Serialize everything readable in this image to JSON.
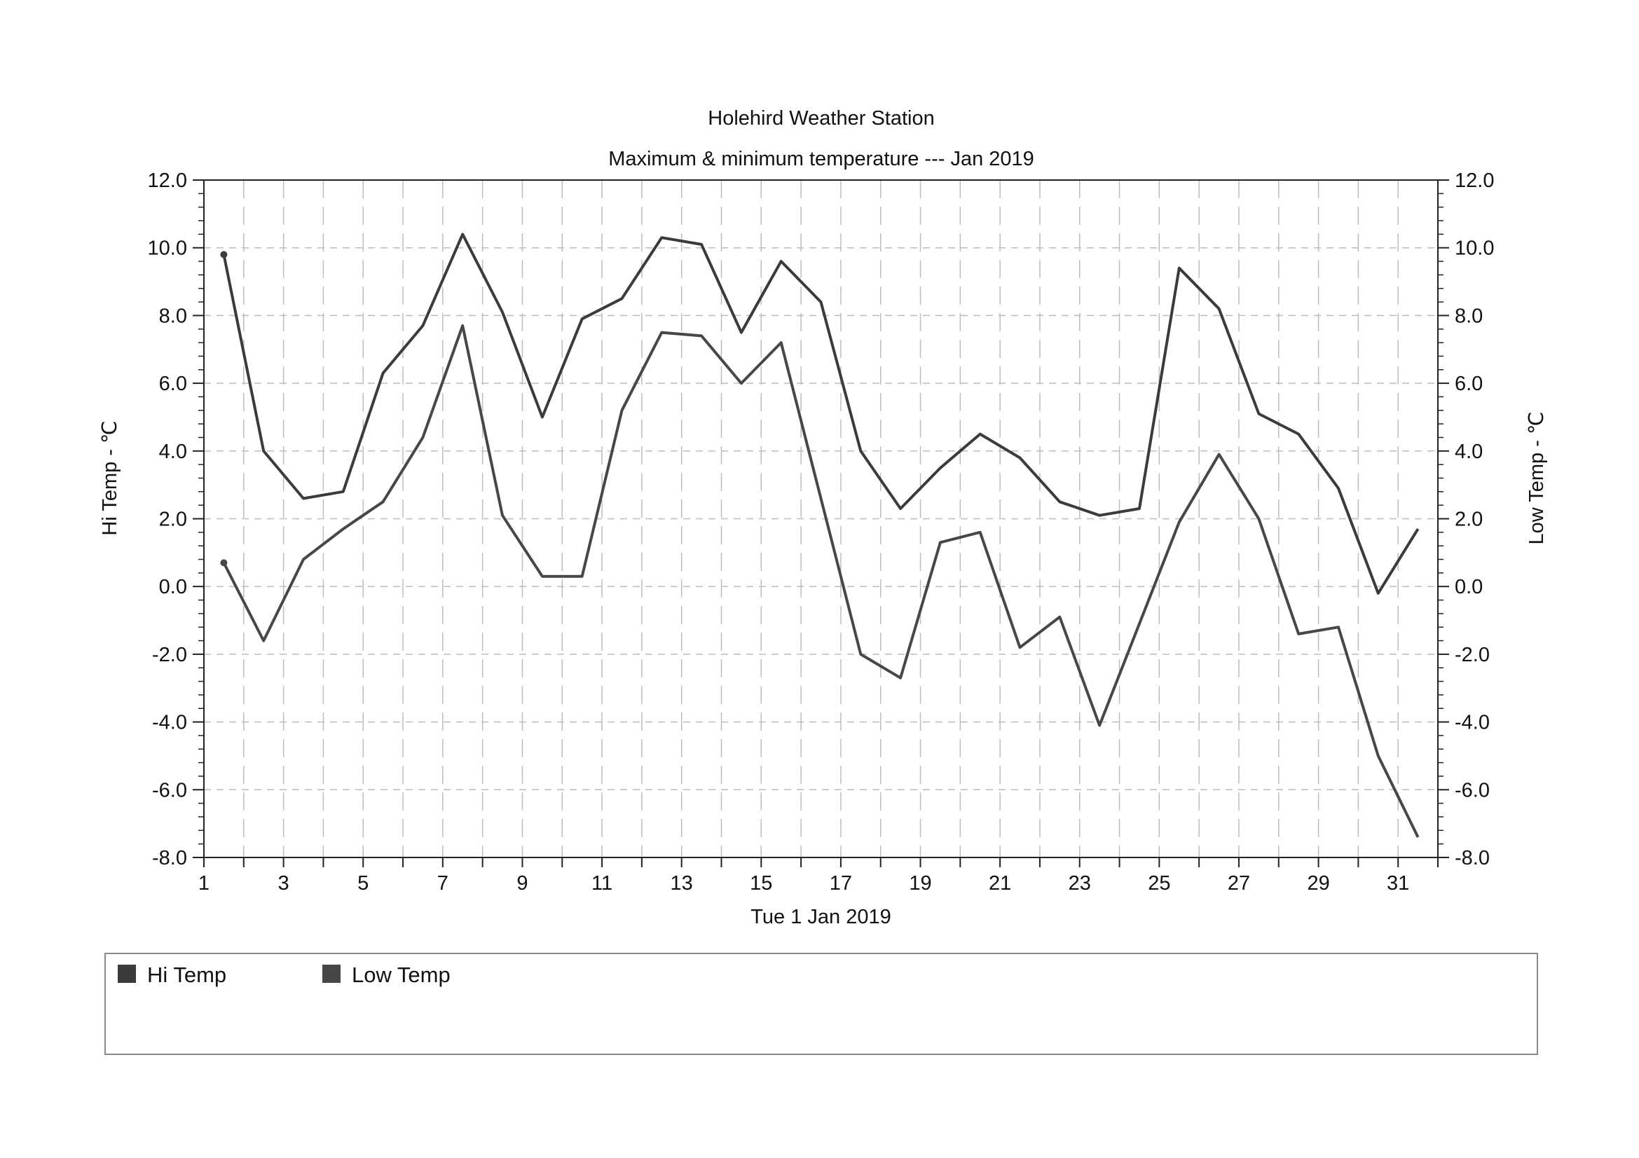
{
  "chart_data": {
    "type": "line",
    "title": "Holehird Weather Station",
    "subtitle": "Maximum & minimum temperature --- Jan 2019",
    "xlabel": "Tue 1 Jan 2019",
    "ylabel_left": "Hi Temp - ℃",
    "ylabel_right": "Low Temp - ℃",
    "xlim": [
      1,
      32
    ],
    "ylim": [
      -8,
      12
    ],
    "x_tick_labels": [
      "1",
      "3",
      "5",
      "7",
      "9",
      "11",
      "13",
      "15",
      "17",
      "19",
      "21",
      "23",
      "25",
      "27",
      "29",
      "31"
    ],
    "y_tick_labels": [
      "12.0",
      "10.0",
      "8.0",
      "6.0",
      "4.0",
      "2.0",
      "0.0",
      "-2.0",
      "-4.0",
      "-6.0",
      "-8.0"
    ],
    "grid": true,
    "legend_position": "bottom",
    "x": [
      1.5,
      2.5,
      3.5,
      4.5,
      5.5,
      6.5,
      7.5,
      8.5,
      9.5,
      10.5,
      11.5,
      12.5,
      13.5,
      14.5,
      15.5,
      16.5,
      17.5,
      18.5,
      19.5,
      20.5,
      21.5,
      22.5,
      23.5,
      24.5,
      25.5,
      26.5,
      27.5,
      28.5,
      29.5,
      30.5,
      31.5
    ],
    "series": [
      {
        "name": "Hi Temp",
        "color": "#3b3b3b",
        "values": [
          9.8,
          4.0,
          2.6,
          2.8,
          6.3,
          7.7,
          10.4,
          8.1,
          5.0,
          7.9,
          8.5,
          10.3,
          10.1,
          7.5,
          9.6,
          8.4,
          4.0,
          2.3,
          3.5,
          4.5,
          3.8,
          2.5,
          2.1,
          2.3,
          9.4,
          8.2,
          5.1,
          4.5,
          2.9,
          -0.2,
          1.7
        ]
      },
      {
        "name": "Low Temp",
        "color": "#474747",
        "values": [
          0.7,
          -1.6,
          0.8,
          1.7,
          2.5,
          4.4,
          7.7,
          2.1,
          0.3,
          0.3,
          5.2,
          7.5,
          7.4,
          6.0,
          7.2,
          2.6,
          -2.0,
          -2.7,
          1.3,
          1.6,
          -1.8,
          -0.9,
          -4.1,
          -1.1,
          1.9,
          3.9,
          2.0,
          -1.4,
          -1.2,
          -5.0,
          -7.4
        ]
      }
    ]
  }
}
